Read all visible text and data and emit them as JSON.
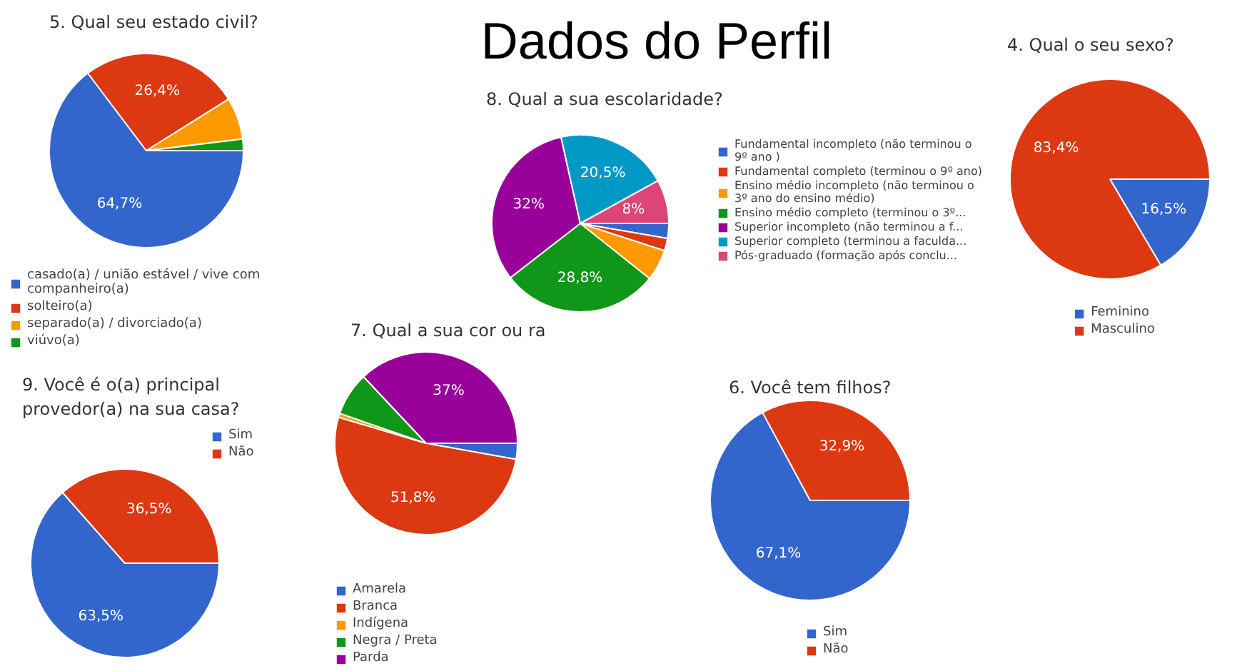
{
  "chart_data": [
    {
      "type": "other",
      "title": "Dados do Perfil"
    },
    {
      "type": "pie",
      "title": "5. Qual seu estado civil?",
      "legend": "bottom left",
      "categories": [
        "casado(a) / união estável / vive com companheiro(a)",
        "solteiro(a)",
        "separado(a) / divorciado(a)",
        "viúvo(a)"
      ],
      "values": [
        64.7,
        26.4,
        7.0,
        1.9
      ],
      "colors": [
        "#3366cc",
        "#dc3912",
        "#ff9900",
        "#109618"
      ],
      "value_labels": [
        "64,7%",
        "26,4%",
        null,
        null
      ]
    },
    {
      "type": "pie",
      "title": "8. Qual a sua escolaridade?",
      "legend": "right",
      "categories": [
        "Fundamental incompleto (não terminou o 9º ano )",
        "Fundamental completo (terminou o 9º ano)",
        "Ensino médio incompleto (não terminou o 3º ano do ensino médio)",
        "Ensino médio completo (terminou o 3º...",
        "Superior incompleto (não terminou a f...",
        "Superior completo (terminou a faculda...",
        "Pós-graduado (formação após conclu..."
      ],
      "values": [
        2.7,
        2.3,
        5.7,
        28.8,
        32,
        20.5,
        8
      ],
      "colors": [
        "#3366cc",
        "#dc3912",
        "#ff9900",
        "#109618",
        "#990099",
        "#0099c6",
        "#dd4477"
      ],
      "value_labels": [
        null,
        null,
        null,
        "28,8%",
        "32%",
        "20,5%",
        "8%"
      ]
    },
    {
      "type": "pie",
      "title": "4. Qual o seu sexo?",
      "legend": "bottom",
      "categories": [
        "Feminino",
        "Masculino"
      ],
      "values": [
        16.5,
        83.4
      ],
      "colors": [
        "#3366cc",
        "#dc3912"
      ],
      "value_labels": [
        "16,5%",
        "83,4%"
      ]
    },
    {
      "type": "pie",
      "title": "9. Você é o(a) principal provedor(a) na sua casa?",
      "legend": "top right",
      "categories": [
        "Sim",
        "Não"
      ],
      "values": [
        63.5,
        36.5
      ],
      "colors": [
        "#3366cc",
        "#dc3912"
      ],
      "value_labels": [
        "63,5%",
        "36,5%"
      ]
    },
    {
      "type": "pie",
      "title": "7. Qual a sua cor ou ra",
      "legend": "bottom left",
      "categories": [
        "Amarela",
        "Branca",
        "Indígena",
        "Negra / Preta",
        "Parda"
      ],
      "values": [
        2.8,
        51.8,
        0.7,
        7.7,
        37
      ],
      "colors": [
        "#3366cc",
        "#dc3912",
        "#ff9900",
        "#109618",
        "#990099"
      ],
      "value_labels": [
        null,
        "51,8%",
        null,
        null,
        "37%"
      ]
    },
    {
      "type": "pie",
      "title": "6. Você tem filhos?",
      "legend": "bottom",
      "categories": [
        "Sim",
        "Não"
      ],
      "values": [
        67.1,
        32.9
      ],
      "colors": [
        "#3366cc",
        "#dc3912"
      ],
      "value_labels": [
        "67,1%",
        "32,9%"
      ]
    }
  ]
}
